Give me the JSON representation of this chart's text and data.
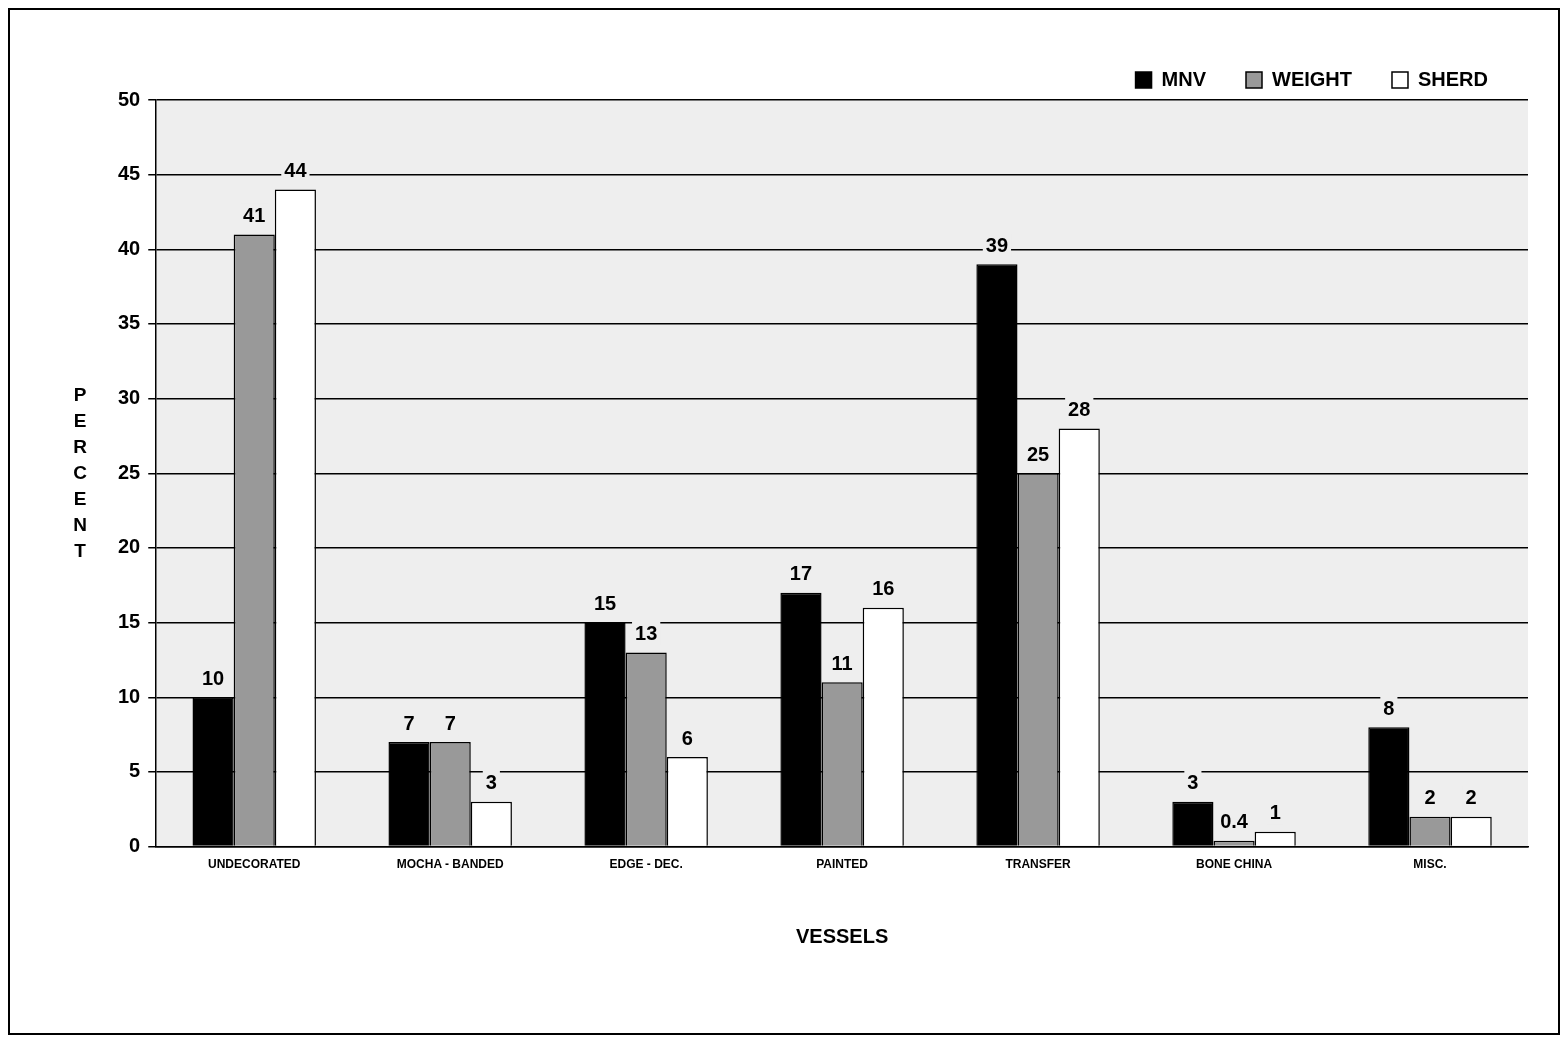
{
  "chart_data": {
    "type": "bar",
    "xlabel": "VESSELS",
    "ylabel": "PERCENT",
    "categories": [
      "UNDECORATED",
      "MOCHA - BANDED",
      "EDGE - DEC.",
      "PAINTED",
      "TRANSFER",
      "BONE CHINA",
      "MISC."
    ],
    "series": [
      {
        "name": "MNV",
        "color": "#000000",
        "values": [
          10,
          7,
          15,
          17,
          39,
          3,
          8
        ]
      },
      {
        "name": "WEIGHT",
        "color": "#999999",
        "values": [
          41,
          7,
          13,
          11,
          25,
          0.4,
          2
        ]
      },
      {
        "name": "SHERD",
        "color": "#ffffff",
        "values": [
          44,
          3,
          6,
          16,
          28,
          1,
          2
        ]
      }
    ],
    "ylim": [
      0,
      50
    ],
    "yticks": [
      0,
      5,
      10,
      15,
      20,
      25,
      30,
      35,
      40,
      45,
      50
    ],
    "grid": "y",
    "legend": "top right",
    "data_labels": true
  }
}
